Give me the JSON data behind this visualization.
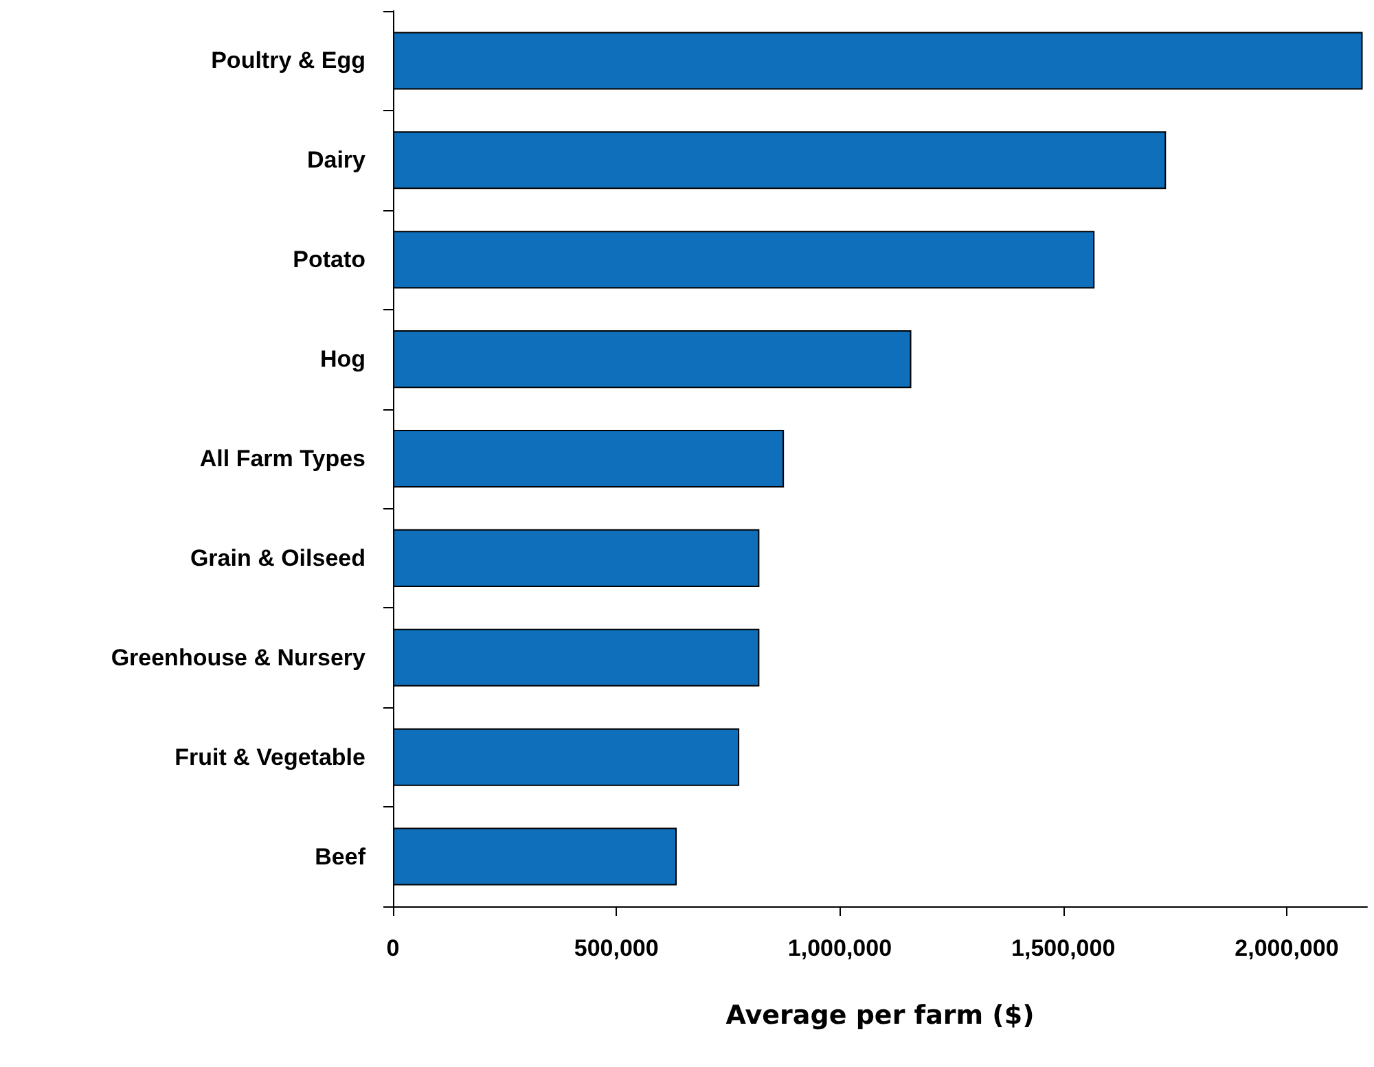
{
  "chart_data": {
    "type": "bar",
    "orientation": "horizontal",
    "xlabel": "Average per farm ($)",
    "categories": [
      "Poultry & Egg",
      "Dairy",
      "Potato",
      "Hog",
      "All Farm Types",
      "Grain & Oilseed",
      "Greenhouse & Nursery",
      "Fruit & Vegetable",
      "Beef"
    ],
    "values": [
      2170000,
      1730000,
      1570000,
      1160000,
      875000,
      820000,
      820000,
      775000,
      635000
    ],
    "color": "#0f6fba",
    "xlim": [
      0,
      2180000
    ],
    "xticks": [
      {
        "value": 0,
        "label": "0"
      },
      {
        "value": 500000,
        "label": "500,000"
      },
      {
        "value": 1000000,
        "label": "1,000,000"
      },
      {
        "value": 1500000,
        "label": "1,500,000"
      },
      {
        "value": 2000000,
        "label": "2,000,000"
      }
    ],
    "grid": false
  }
}
